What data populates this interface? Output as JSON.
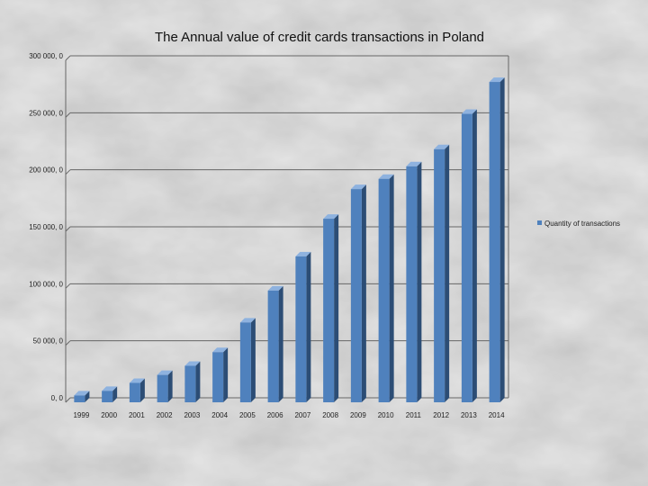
{
  "chart_data": {
    "type": "bar",
    "title": "The Annual value of credit cards transactions in Poland",
    "xlabel": "",
    "ylabel": "",
    "categories": [
      "1999",
      "2000",
      "2001",
      "2002",
      "2003",
      "2004",
      "2005",
      "2006",
      "2007",
      "2008",
      "2009",
      "2010",
      "2011",
      "2012",
      "2013",
      "2014"
    ],
    "series": [
      {
        "name": "Quantity of transactions",
        "values": [
          6000,
          10000,
          17000,
          24000,
          32000,
          44000,
          70000,
          98000,
          128000,
          161000,
          187000,
          196000,
          207000,
          222000,
          253000,
          281000
        ]
      }
    ],
    "ylim": [
      0,
      300000
    ],
    "yticks": [
      0,
      50000,
      100000,
      150000,
      200000,
      250000,
      300000
    ],
    "ytick_labels": [
      "0, 0",
      "50 000, 0",
      "100 000, 0",
      "150 000, 0",
      "200 000, 0",
      "250 000, 0",
      "300 000, 0"
    ],
    "grid": true,
    "legend_position": "right",
    "colors": {
      "bar_face": "#4f81bd",
      "bar_side": "#2c4d75",
      "bar_top": "#8eb2df",
      "grid": "#666666"
    }
  }
}
